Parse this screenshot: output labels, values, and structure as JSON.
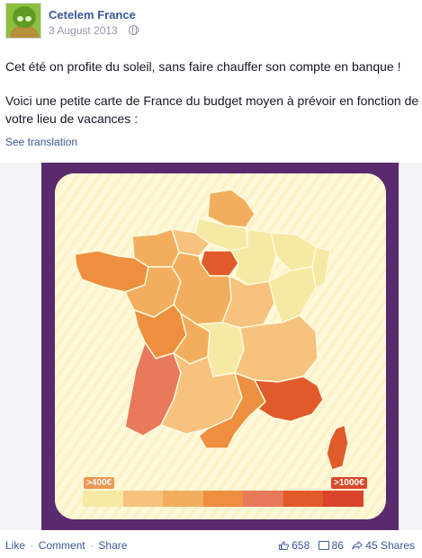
{
  "post": {
    "page_name": "Cetelem France",
    "date": "3 August 2013",
    "privacy_icon": "globe-icon",
    "message_line1": "Cet été on profite du soleil, sans faire chauffer son compte en banque !",
    "message_line2": "Voici une petite carte de France du budget moyen à prévoir en fonction de votre lieu de vacances :",
    "see_translation": "See translation"
  },
  "image": {
    "legend_low": ">400€",
    "legend_high": ">1000€",
    "scale_colors": [
      "#f6e9a3",
      "#f7c27e",
      "#f2ae5e",
      "#ee8f3f",
      "#e8795a",
      "#e15a2a",
      "#d9442a"
    ]
  },
  "footer": {
    "like": "Like",
    "comment": "Comment",
    "share": "Share",
    "separator": "·",
    "likes_count": "658",
    "comments_count": "86",
    "shares_count": "45 Shares"
  },
  "colors": {
    "link": "#3b5998",
    "meta": "#9197a3",
    "poster_frame": "#5a2a6e",
    "card_background": "#fff9dc"
  }
}
